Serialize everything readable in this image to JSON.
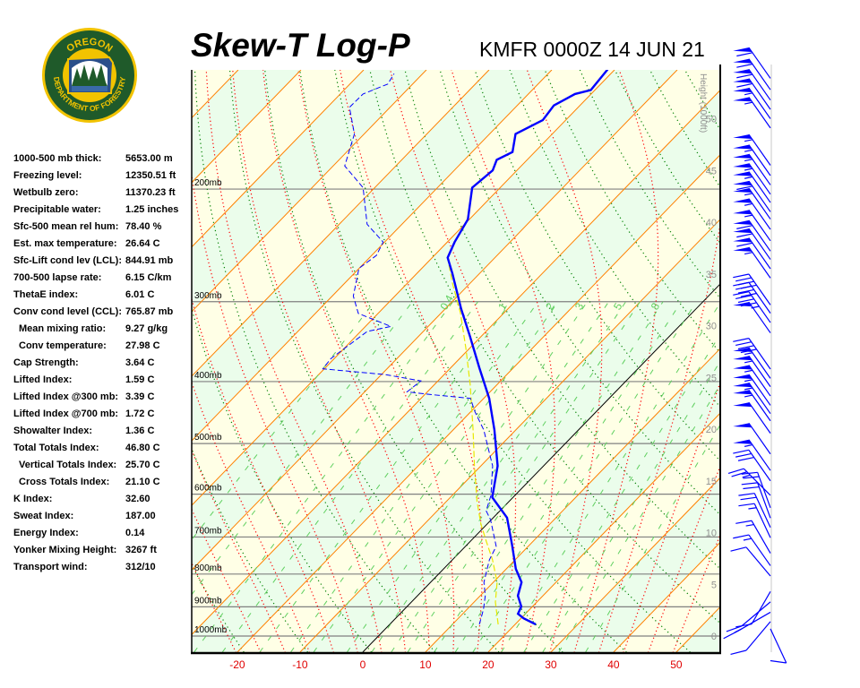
{
  "logo": {
    "text_top": "OREGON",
    "text_bottom": "DEPARTMENT OF FORESTRY",
    "colors": {
      "ring": "#1f5a2a",
      "gold": "#f2c300"
    }
  },
  "header": {
    "title": "Skew-T Log-P",
    "station": "KMFR 0000Z 14 JUN 21"
  },
  "stats": [
    {
      "label": "1000-500 mb thick:",
      "value": "5653.00 m"
    },
    {
      "label": "Freezing level:",
      "value": "12350.51 ft"
    },
    {
      "label": "Wetbulb zero:",
      "value": "11370.23 ft"
    },
    {
      "label": "Precipitable water:",
      "value": "1.25 inches"
    },
    {
      "label": "Sfc-500 mean rel hum:",
      "value": "78.40 %"
    },
    {
      "label": "Est. max temperature:",
      "value": "26.64 C"
    },
    {
      "label": "Sfc-Lift cond lev (LCL):",
      "value": "844.91 mb"
    },
    {
      "label": "700-500 lapse rate:",
      "value": "6.15 C/km"
    },
    {
      "label": "ThetaE index:",
      "value": "6.01 C"
    },
    {
      "label": "Conv cond level (CCL):",
      "value": "765.87 mb"
    },
    {
      "label": "Mean mixing ratio:",
      "value": "9.27 g/kg",
      "indent": true
    },
    {
      "label": "Conv temperature:",
      "value": "27.98 C",
      "indent": true
    },
    {
      "label": "Cap Strength:",
      "value": "3.64 C"
    },
    {
      "label": "Lifted Index:",
      "value": "1.59 C"
    },
    {
      "label": "Lifted Index @300 mb:",
      "value": "3.39 C"
    },
    {
      "label": "Lifted Index @700 mb:",
      "value": "1.72 C"
    },
    {
      "label": "Showalter Index:",
      "value": "1.36 C"
    },
    {
      "label": "Total Totals Index:",
      "value": "46.80 C"
    },
    {
      "label": "Vertical Totals Index:",
      "value": "25.70 C",
      "indent": true
    },
    {
      "label": "Cross Totals Index:",
      "value": "21.10 C",
      "indent": true
    },
    {
      "label": "K Index:",
      "value": "32.60"
    },
    {
      "label": "Sweat Index:",
      "value": "187.00"
    },
    {
      "label": "Energy Index:",
      "value": "0.14"
    },
    {
      "label": "Yonker Mixing Height:",
      "value": "3267 ft"
    },
    {
      "label": "Transport wind:",
      "value": "312/10"
    }
  ],
  "chart_data": {
    "type": "skew-t",
    "title": "Skew-T Log-P",
    "x_axis": {
      "unit": "C",
      "ticks": [
        -20,
        -10,
        0,
        10,
        20,
        30,
        40,
        50
      ]
    },
    "y_axis": {
      "scale": "log",
      "unit": "mb",
      "range": [
        1060,
        130
      ],
      "ticks": [
        {
          "p": 1000,
          "label": "1000mb"
        },
        {
          "p": 900,
          "label": "900mb"
        },
        {
          "p": 800,
          "label": "800mb"
        },
        {
          "p": 700,
          "label": "700mb"
        },
        {
          "p": 600,
          "label": "600mb"
        },
        {
          "p": 500,
          "label": "500mb"
        },
        {
          "p": 400,
          "label": "400mb"
        },
        {
          "p": 300,
          "label": "300mb"
        },
        {
          "p": 200,
          "label": "200mb"
        }
      ]
    },
    "height_axis": {
      "label": "Height (1000ft)",
      "ticks": [
        "0",
        "5",
        "10",
        "15",
        "20",
        "25",
        "30",
        "35",
        "40",
        "45",
        "50"
      ]
    },
    "mixing_ratio_labels": [
      "0.4",
      "1",
      "2",
      "3",
      "5",
      "8"
    ],
    "mixing_ratio_values": [
      0.4,
      1,
      2,
      3,
      5,
      8
    ],
    "colors": {
      "temperature": "#0000ff",
      "dewpoint": "#0000ff",
      "parcel": "#e8e800",
      "isotherm": "#ff8000",
      "zero_isotherm": "#000000",
      "dry_adiabat": "#008000",
      "moist_adiabat": "#ff0000",
      "mixing_ratio": "#60d060",
      "band_a": "#ffffe6",
      "band_b": "#ebfdeb",
      "wind": "#0000ff"
    },
    "temperature": {
      "p": [
        959,
        938,
        923,
        899,
        865,
        824,
        785,
        720,
        653,
        607,
        542,
        476,
        425,
        380,
        339,
        308,
        271,
        256,
        242,
        223,
        199,
        187,
        180,
        175,
        164,
        156,
        148,
        142,
        140,
        130
      ],
      "t": [
        23.3,
        20.4,
        18.8,
        18.2,
        16.0,
        14.5,
        11.5,
        7.2,
        2.2,
        -3.3,
        -7.3,
        -13.4,
        -19.1,
        -25.5,
        -31.9,
        -37.4,
        -44.3,
        -47.5,
        -48.8,
        -50.2,
        -54.4,
        -53.8,
        -54.8,
        -53.5,
        -55.8,
        -53.6,
        -54.1,
        -52.5,
        -50.6,
        -51.1
      ]
    },
    "dewpoint": {
      "p": [
        959,
        908,
        865,
        824,
        760,
        724,
        658,
        637,
        603,
        542,
        508,
        476,
        446,
        425,
        419,
        415,
        399,
        390,
        382,
        368,
        334,
        328,
        313,
        294,
        266,
        254,
        242,
        227,
        199,
        184,
        164,
        149,
        142,
        137,
        132
      ],
      "t": [
        14.3,
        12.6,
        10.8,
        8.5,
        5.9,
        4.9,
        -0.1,
        -2.2,
        -3.8,
        -8.1,
        -11.6,
        -15.1,
        -19.3,
        -22.1,
        -29.2,
        -33.2,
        -32.7,
        -39.4,
        -50.2,
        -50.5,
        -48.9,
        -45.9,
        -53.1,
        -56.6,
        -60.0,
        -59.2,
        -60.2,
        -65.5,
        -71.8,
        -78.1,
        -81.5,
        -86.4,
        -86.3,
        -83.9,
        -84.5
      ]
    },
    "parcel": {
      "p": [
        959,
        885,
        824,
        760,
        713,
        668,
        616,
        542,
        476,
        405,
        356,
        313,
        280,
        258
      ],
      "t": [
        17.3,
        13.4,
        10.6,
        6.4,
        2.7,
        -1.0,
        -5.1,
        -11.0,
        -16.8,
        -24.2,
        -30.4,
        -36.8,
        -42.9,
        -47.1
      ]
    },
    "winds": [
      {
        "h": 53.9,
        "dir": 215,
        "spd": 60
      },
      {
        "h": 52.8,
        "dir": 215,
        "spd": 60
      },
      {
        "h": 51.8,
        "dir": 215,
        "spd": 60
      },
      {
        "h": 50.9,
        "dir": 215,
        "spd": 60
      },
      {
        "h": 50.0,
        "dir": 215,
        "spd": 55
      },
      {
        "h": 49.1,
        "dir": 215,
        "spd": 55
      },
      {
        "h": 45.5,
        "dir": 215,
        "spd": 55
      },
      {
        "h": 44.5,
        "dir": 215,
        "spd": 55
      },
      {
        "h": 43.6,
        "dir": 215,
        "spd": 55
      },
      {
        "h": 42.7,
        "dir": 215,
        "spd": 55
      },
      {
        "h": 41.9,
        "dir": 215,
        "spd": 55
      },
      {
        "h": 41.0,
        "dir": 215,
        "spd": 60
      },
      {
        "h": 40.3,
        "dir": 215,
        "spd": 55
      },
      {
        "h": 39.3,
        "dir": 215,
        "spd": 55
      },
      {
        "h": 38.2,
        "dir": 215,
        "spd": 55
      },
      {
        "h": 37.2,
        "dir": 215,
        "spd": 60
      },
      {
        "h": 36.4,
        "dir": 215,
        "spd": 60
      },
      {
        "h": 35.5,
        "dir": 215,
        "spd": 60
      },
      {
        "h": 34.6,
        "dir": 215,
        "spd": 55
      },
      {
        "h": 32.0,
        "dir": 215,
        "spd": 40
      },
      {
        "h": 31.2,
        "dir": 215,
        "spd": 40
      },
      {
        "h": 30.3,
        "dir": 215,
        "spd": 45
      },
      {
        "h": 29.3,
        "dir": 215,
        "spd": 50
      },
      {
        "h": 25.8,
        "dir": 215,
        "spd": 40
      },
      {
        "h": 24.9,
        "dir": 215,
        "spd": 55
      },
      {
        "h": 24.1,
        "dir": 215,
        "spd": 55
      },
      {
        "h": 23.2,
        "dir": 215,
        "spd": 55
      },
      {
        "h": 22.3,
        "dir": 215,
        "spd": 55
      },
      {
        "h": 21.5,
        "dir": 215,
        "spd": 55
      },
      {
        "h": 20.8,
        "dir": 215,
        "spd": 55
      },
      {
        "h": 19.6,
        "dir": 215,
        "spd": 50
      },
      {
        "h": 17.6,
        "dir": 215,
        "spd": 50
      },
      {
        "h": 16.0,
        "dir": 215,
        "spd": 55
      },
      {
        "h": 15.0,
        "dir": 215,
        "spd": 30
      },
      {
        "h": 13.6,
        "dir": 225,
        "spd": 25
      },
      {
        "h": 12.4,
        "dir": 200,
        "spd": 20
      },
      {
        "h": 11.4,
        "dir": 200,
        "spd": 20
      },
      {
        "h": 10.5,
        "dir": 205,
        "spd": 20
      },
      {
        "h": 9.5,
        "dir": 205,
        "spd": 15
      },
      {
        "h": 8.0,
        "dir": 210,
        "spd": 15
      },
      {
        "h": 6.8,
        "dir": 215,
        "spd": 15
      },
      {
        "h": 5.8,
        "dir": 220,
        "spd": 10
      },
      {
        "h": 4.3,
        "dir": 330,
        "spd": 10
      },
      {
        "h": 3.3,
        "dir": 310,
        "spd": 10
      },
      {
        "h": 2.3,
        "dir": 300,
        "spd": 15
      },
      {
        "h": 1.4,
        "dir": 320,
        "spd": 10
      },
      {
        "h": 0.7,
        "dir": 25,
        "spd": 10
      }
    ]
  }
}
